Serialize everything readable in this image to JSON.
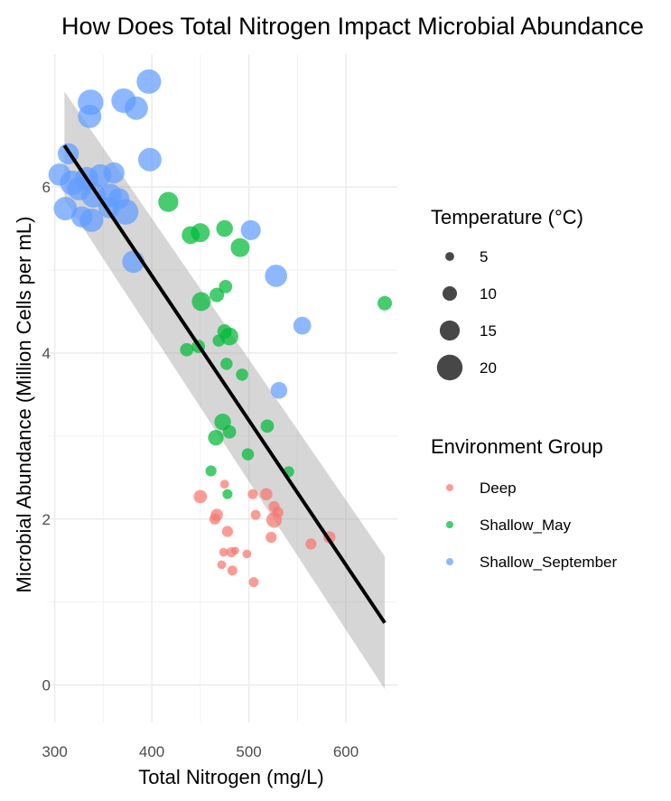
{
  "chart_data": {
    "type": "scatter",
    "title": "How Does Total Nitrogen Impact Microbial Abundance",
    "xlabel": "Total Nitrogen (mg/L)",
    "ylabel": "Microbial Abundance (Million Cells per mL)",
    "xlim": [
      292,
      653
    ],
    "ylim": [
      -0.45,
      7.6
    ],
    "x_ticks": [
      300,
      400,
      500,
      600
    ],
    "y_ticks": [
      0,
      2,
      4,
      6
    ],
    "x_tick_labels": [
      "300",
      "400",
      "500",
      "600"
    ],
    "y_tick_labels": [
      "0",
      "2",
      "4",
      "6"
    ],
    "grid": true,
    "size_legend": {
      "title": "Temperature (°C)",
      "labels": [
        "5",
        "10",
        "15",
        "20"
      ],
      "values": [
        5,
        10,
        15,
        20
      ]
    },
    "color_legend": {
      "title": "Environment Group",
      "labels": [
        "Deep",
        "Shallow_May",
        "Shallow_September"
      ],
      "colors": [
        "#F8766D",
        "#00BA38",
        "#619CFF"
      ]
    },
    "trend": {
      "x": [
        310,
        640
      ],
      "y": [
        6.5,
        0.75
      ],
      "ci_lower": [
        5.85,
        -0.05
      ],
      "ci_upper": [
        7.15,
        1.55
      ],
      "color": "#000000",
      "band_color": "#999999"
    },
    "series": [
      {
        "name": "Deep",
        "color": "#F8766D",
        "points": [
          {
            "x": 450,
            "y": 2.27,
            "t": 9
          },
          {
            "x": 467,
            "y": 2.05,
            "t": 8
          },
          {
            "x": 465,
            "y": 2.0,
            "t": 7
          },
          {
            "x": 475,
            "y": 2.42,
            "t": 5
          },
          {
            "x": 478,
            "y": 1.85,
            "t": 7
          },
          {
            "x": 474,
            "y": 1.6,
            "t": 5
          },
          {
            "x": 482,
            "y": 1.6,
            "t": 6
          },
          {
            "x": 486,
            "y": 1.62,
            "t": 4
          },
          {
            "x": 472,
            "y": 1.45,
            "t": 5
          },
          {
            "x": 483,
            "y": 1.38,
            "t": 6
          },
          {
            "x": 498,
            "y": 1.58,
            "t": 5
          },
          {
            "x": 504,
            "y": 2.3,
            "t": 6
          },
          {
            "x": 507,
            "y": 2.05,
            "t": 6
          },
          {
            "x": 518,
            "y": 2.3,
            "t": 8
          },
          {
            "x": 526,
            "y": 2.15,
            "t": 7
          },
          {
            "x": 530,
            "y": 2.08,
            "t": 7
          },
          {
            "x": 526,
            "y": 1.99,
            "t": 11
          },
          {
            "x": 523,
            "y": 1.78,
            "t": 7
          },
          {
            "x": 505,
            "y": 1.24,
            "t": 6
          },
          {
            "x": 564,
            "y": 1.7,
            "t": 7
          },
          {
            "x": 583,
            "y": 1.78,
            "t": 8
          }
        ]
      },
      {
        "name": "Shallow_May",
        "color": "#00BA38",
        "points": [
          {
            "x": 417,
            "y": 5.82,
            "t": 15
          },
          {
            "x": 440,
            "y": 5.42,
            "t": 13
          },
          {
            "x": 450,
            "y": 5.45,
            "t": 14
          },
          {
            "x": 475,
            "y": 5.5,
            "t": 12
          },
          {
            "x": 491,
            "y": 5.27,
            "t": 14
          },
          {
            "x": 451,
            "y": 4.62,
            "t": 14
          },
          {
            "x": 467,
            "y": 4.7,
            "t": 10
          },
          {
            "x": 476,
            "y": 4.8,
            "t": 9
          },
          {
            "x": 475,
            "y": 4.26,
            "t": 10
          },
          {
            "x": 480,
            "y": 4.2,
            "t": 13
          },
          {
            "x": 469,
            "y": 4.15,
            "t": 8
          },
          {
            "x": 436,
            "y": 4.04,
            "t": 9
          },
          {
            "x": 448,
            "y": 4.08,
            "t": 9
          },
          {
            "x": 477,
            "y": 3.87,
            "t": 8
          },
          {
            "x": 493,
            "y": 3.74,
            "t": 8
          },
          {
            "x": 473,
            "y": 3.17,
            "t": 12
          },
          {
            "x": 480,
            "y": 3.05,
            "t": 9
          },
          {
            "x": 466,
            "y": 2.98,
            "t": 11
          },
          {
            "x": 519,
            "y": 3.12,
            "t": 9
          },
          {
            "x": 499,
            "y": 2.78,
            "t": 8
          },
          {
            "x": 461,
            "y": 2.58,
            "t": 7
          },
          {
            "x": 541,
            "y": 2.57,
            "t": 7
          },
          {
            "x": 478,
            "y": 2.3,
            "t": 6
          },
          {
            "x": 640,
            "y": 4.6,
            "t": 10
          }
        ]
      },
      {
        "name": "Shallow_September",
        "color": "#619CFF",
        "points": [
          {
            "x": 397,
            "y": 7.27,
            "t": 19
          },
          {
            "x": 337,
            "y": 7.02,
            "t": 20
          },
          {
            "x": 371,
            "y": 7.04,
            "t": 19
          },
          {
            "x": 384,
            "y": 6.95,
            "t": 18
          },
          {
            "x": 336,
            "y": 6.85,
            "t": 18
          },
          {
            "x": 398,
            "y": 6.33,
            "t": 18
          },
          {
            "x": 314,
            "y": 6.4,
            "t": 16
          },
          {
            "x": 305,
            "y": 6.15,
            "t": 17
          },
          {
            "x": 318,
            "y": 6.05,
            "t": 19
          },
          {
            "x": 333,
            "y": 6.1,
            "t": 18
          },
          {
            "x": 347,
            "y": 6.14,
            "t": 17
          },
          {
            "x": 361,
            "y": 6.17,
            "t": 16
          },
          {
            "x": 325,
            "y": 5.98,
            "t": 18
          },
          {
            "x": 340,
            "y": 5.9,
            "t": 19
          },
          {
            "x": 357,
            "y": 5.9,
            "t": 18
          },
          {
            "x": 366,
            "y": 5.86,
            "t": 16
          },
          {
            "x": 311,
            "y": 5.74,
            "t": 18
          },
          {
            "x": 328,
            "y": 5.64,
            "t": 16
          },
          {
            "x": 338,
            "y": 5.6,
            "t": 18
          },
          {
            "x": 373,
            "y": 5.7,
            "t": 20
          },
          {
            "x": 356,
            "y": 5.75,
            "t": 16
          },
          {
            "x": 381,
            "y": 5.1,
            "t": 17
          },
          {
            "x": 502,
            "y": 5.48,
            "t": 15
          },
          {
            "x": 528,
            "y": 4.93,
            "t": 17
          },
          {
            "x": 555,
            "y": 4.33,
            "t": 13
          },
          {
            "x": 531,
            "y": 3.55,
            "t": 12
          }
        ]
      }
    ]
  }
}
